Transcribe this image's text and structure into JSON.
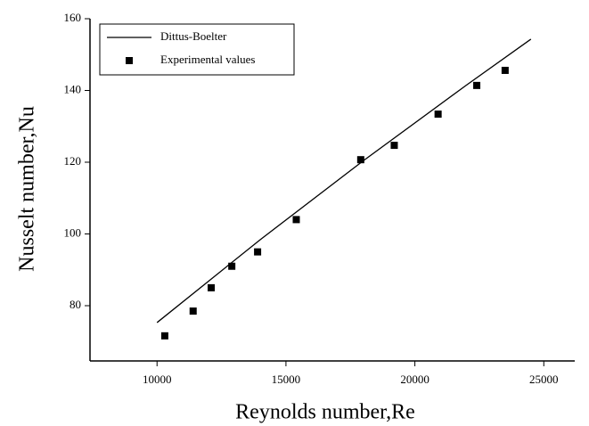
{
  "chart_data": {
    "type": "line_scatter",
    "x_label": "Reynolds number,Re",
    "y_label": "Nusselt number,Nu",
    "xlim": [
      7400,
      26200
    ],
    "ylim": [
      64.6,
      160
    ],
    "xticks": [
      10000,
      15000,
      20000,
      25000
    ],
    "yticks": [
      80,
      100,
      120,
      140,
      160
    ],
    "legend": "upper left",
    "series": [
      {
        "name": "Dittus-Boelter",
        "kind": "line",
        "color": "#000000",
        "x": [
          10000,
          14000,
          18000,
          22000,
          24500
        ],
        "values": [
          75.3,
          98.4,
          120.4,
          141.5,
          154.3
        ]
      },
      {
        "name": "Experimental values",
        "kind": "scatter",
        "color": "#000000",
        "x": [
          10300,
          11400,
          12100,
          12900,
          13900,
          15400,
          17900,
          19200,
          20900,
          22400,
          23500
        ],
        "values": [
          71.6,
          78.5,
          85,
          91,
          95,
          104,
          120.7,
          124.7,
          133.4,
          141.4,
          145.6
        ]
      }
    ]
  }
}
